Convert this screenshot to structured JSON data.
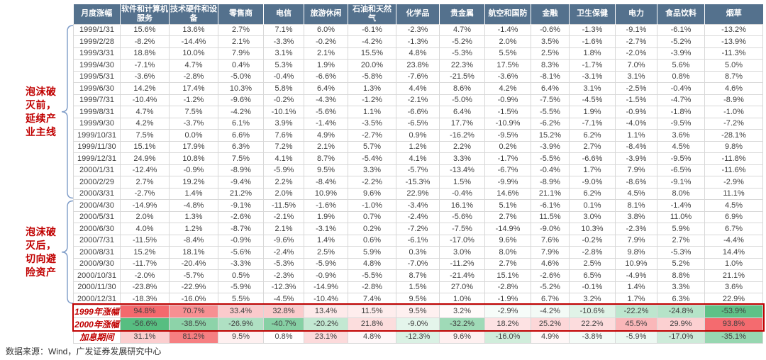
{
  "source_note": "数据来源：Wind，广发证券发展研究中心",
  "annotations": {
    "pre_bubble": {
      "label": "泡沫破\n灭前，\n延续产\n业主线"
    },
    "post_bubble": {
      "label": "泡沫破\n灭后，\n切向避\n险资产"
    }
  },
  "colors": {
    "header_bg": "#54718D",
    "header_text": "#FFFFFF",
    "cell_text": "#404040",
    "accent_red": "#C00000",
    "heat_max_positive": "#F4696D",
    "heat_max_negative": "#57BE81",
    "brace_blue": "#7E9CC8",
    "gridline": "#D8D8D8"
  },
  "chart_data": {
    "type": "table",
    "title": "",
    "value_format": "percent",
    "columns": [
      "月度涨幅",
      "软件和计算机服务",
      "技术硬件和设备",
      "零售商",
      "电信",
      "旅游休闲",
      "石油和天然气",
      "化学品",
      "贵金属",
      "航空和国防",
      "金融",
      "卫生保健",
      "电力",
      "食品饮料",
      "烟草"
    ],
    "rows": [
      {
        "label": "1999/1/31",
        "values": [
          15.6,
          13.6,
          2.7,
          7.1,
          6.0,
          -6.1,
          -2.3,
          4.7,
          -1.4,
          -0.6,
          -1.3,
          -9.1,
          -6.1,
          -13.2
        ]
      },
      {
        "label": "1999/2/28",
        "values": [
          -8.2,
          -14.4,
          2.1,
          -3.3,
          -0.2,
          -4.2,
          -1.3,
          -5.2,
          2.0,
          3.5,
          -1.6,
          -2.7,
          -5.2,
          -13.9
        ]
      },
      {
        "label": "1999/3/31",
        "values": [
          18.8,
          10.0,
          7.9,
          3.1,
          2.1,
          15.5,
          4.8,
          -5.3,
          5.5,
          2.5,
          1.8,
          -2.0,
          -3.9,
          -11.3
        ]
      },
      {
        "label": "1999/4/30",
        "values": [
          -7.1,
          4.7,
          0.4,
          5.3,
          1.9,
          20.0,
          23.8,
          22.3,
          17.5,
          8.3,
          -1.7,
          7.0,
          5.6,
          5.0
        ]
      },
      {
        "label": "1999/5/31",
        "values": [
          -3.6,
          -2.8,
          -5.0,
          -0.4,
          -6.6,
          -5.8,
          -7.6,
          -21.5,
          -3.6,
          -8.1,
          -3.1,
          3.1,
          0.8,
          8.7
        ]
      },
      {
        "label": "1999/6/30",
        "values": [
          14.2,
          17.4,
          10.3,
          5.8,
          6.4,
          1.3,
          4.4,
          8.6,
          4.2,
          6.4,
          3.1,
          -2.5,
          -0.4,
          4.6
        ]
      },
      {
        "label": "1999/7/31",
        "values": [
          -10.4,
          -1.2,
          -9.6,
          -0.2,
          -4.3,
          -1.2,
          -2.1,
          -5.0,
          -0.9,
          -7.5,
          -4.5,
          -1.5,
          -4.7,
          -8.9
        ]
      },
      {
        "label": "1999/8/31",
        "values": [
          4.7,
          7.5,
          -4.2,
          -10.1,
          -5.6,
          1.1,
          -6.6,
          6.4,
          -1.5,
          -5.5,
          1.9,
          -0.9,
          -1.8,
          -1.0
        ]
      },
      {
        "label": "1999/9/30",
        "values": [
          4.2,
          -3.7,
          6.1,
          3.9,
          -1.4,
          -3.5,
          -6.5,
          17.7,
          -10.9,
          -6.2,
          -7.1,
          -4.0,
          -9.5,
          -7.2
        ]
      },
      {
        "label": "1999/10/31",
        "values": [
          7.5,
          0.0,
          6.6,
          7.6,
          4.9,
          -2.7,
          0.9,
          -16.2,
          -9.5,
          15.2,
          6.2,
          1.1,
          3.6,
          -28.1
        ]
      },
      {
        "label": "1999/11/30",
        "values": [
          15.1,
          17.9,
          6.3,
          7.2,
          2.1,
          5.7,
          1.2,
          2.2,
          0.2,
          -3.9,
          2.7,
          -8.4,
          4.5,
          9.8
        ]
      },
      {
        "label": "1999/12/31",
        "values": [
          24.9,
          10.8,
          7.5,
          4.1,
          8.7,
          -5.4,
          4.1,
          3.3,
          -1.7,
          -5.5,
          -6.6,
          -3.9,
          -9.5,
          -11.8
        ]
      },
      {
        "label": "2000/1/31",
        "values": [
          -12.4,
          -0.9,
          -8.9,
          -5.9,
          9.5,
          3.3,
          -5.7,
          -13.4,
          -6.7,
          -0.4,
          1.7,
          7.9,
          -6.5,
          -11.6
        ]
      },
      {
        "label": "2000/2/29",
        "values": [
          2.7,
          19.2,
          -9.4,
          2.2,
          -8.4,
          -2.2,
          -15.3,
          1.5,
          -9.9,
          -8.9,
          -9.0,
          -8.6,
          -9.1,
          -2.9
        ]
      },
      {
        "label": "2000/3/31",
        "values": [
          -2.7,
          1.4,
          21.2,
          2.0,
          10.9,
          9.6,
          22.9,
          -0.4,
          14.6,
          21.1,
          6.2,
          4.5,
          8.0,
          11.1
        ]
      },
      {
        "label": "2000/4/30",
        "values": [
          -14.9,
          -4.8,
          -9.1,
          -11.5,
          -1.6,
          -1.0,
          -3.4,
          16.1,
          5.1,
          -6.1,
          0.1,
          8.1,
          -1.4,
          4.5
        ]
      },
      {
        "label": "2000/5/31",
        "values": [
          2.0,
          1.3,
          -2.6,
          -2.1,
          1.9,
          0.7,
          -2.4,
          -5.6,
          2.7,
          11.5,
          3.0,
          3.8,
          11.0,
          6.9
        ]
      },
      {
        "label": "2000/6/30",
        "values": [
          4.0,
          1.2,
          -8.7,
          2.1,
          -3.1,
          0.2,
          -7.2,
          -7.5,
          -14.9,
          -9.0,
          10.3,
          -2.3,
          5.9,
          6.7
        ]
      },
      {
        "label": "2000/7/31",
        "values": [
          -11.5,
          -8.4,
          -0.9,
          -9.6,
          1.4,
          0.6,
          -6.1,
          -17.0,
          9.6,
          7.6,
          -0.2,
          7.9,
          2.7,
          -4.4
        ]
      },
      {
        "label": "2000/8/31",
        "values": [
          15.2,
          18.1,
          -5.6,
          -2.4,
          2.5,
          5.9,
          0.3,
          3.0,
          8.0,
          7.9,
          -2.8,
          9.8,
          -5.3,
          14.4
        ]
      },
      {
        "label": "2000/9/30",
        "values": [
          -11.7,
          -20.4,
          -3.3,
          -5.3,
          -5.9,
          4.8,
          -7.0,
          -11.2,
          2.7,
          4.6,
          2.5,
          10.9,
          5.2,
          1.0
        ]
      },
      {
        "label": "2000/10/31",
        "values": [
          -2.0,
          -5.7,
          0.5,
          -2.3,
          -0.9,
          -5.5,
          8.7,
          -21.4,
          15.1,
          -2.6,
          6.5,
          -4.9,
          8.8,
          21.1
        ]
      },
      {
        "label": "2000/11/30",
        "values": [
          -23.8,
          -22.9,
          -5.9,
          -12.3,
          -14.9,
          -2.8,
          1.5,
          27.0,
          -2.8,
          -5.2,
          -0.1,
          1.4,
          3.3,
          3.6
        ]
      },
      {
        "label": "2000/12/31",
        "values": [
          -18.3,
          -16.0,
          5.5,
          -4.5,
          -10.4,
          7.4,
          9.5,
          1.0,
          -1.9,
          6.7,
          3.2,
          1.7,
          6.3,
          22.9
        ]
      }
    ],
    "summary_rows": [
      {
        "label": "1999年涨幅",
        "highlighted": true,
        "values": [
          94.8,
          70.7,
          33.4,
          32.8,
          13.4,
          11.5,
          9.5,
          3.2,
          -2.9,
          -4.2,
          -10.6,
          -22.2,
          -24.8,
          -53.9
        ]
      },
      {
        "label": "2000年涨幅",
        "highlighted": true,
        "values": [
          -56.6,
          -38.5,
          -26.9,
          -40.7,
          -20.2,
          21.8,
          -9.0,
          -32.2,
          18.2,
          25.2,
          22.2,
          45.5,
          29.9,
          93.8
        ]
      },
      {
        "label": "加息期间",
        "highlighted": false,
        "values": [
          31.1,
          81.2,
          9.5,
          0.8,
          23.1,
          4.8,
          -12.3,
          9.6,
          -16.0,
          4.9,
          -3.8,
          -5.9,
          -17.0,
          -35.1
        ]
      }
    ],
    "heatmap": {
      "applies_to": "summary_rows",
      "positive_color": "#F4696D",
      "negative_color": "#57BE81",
      "midpoint_color": "#FFFFFF"
    }
  }
}
